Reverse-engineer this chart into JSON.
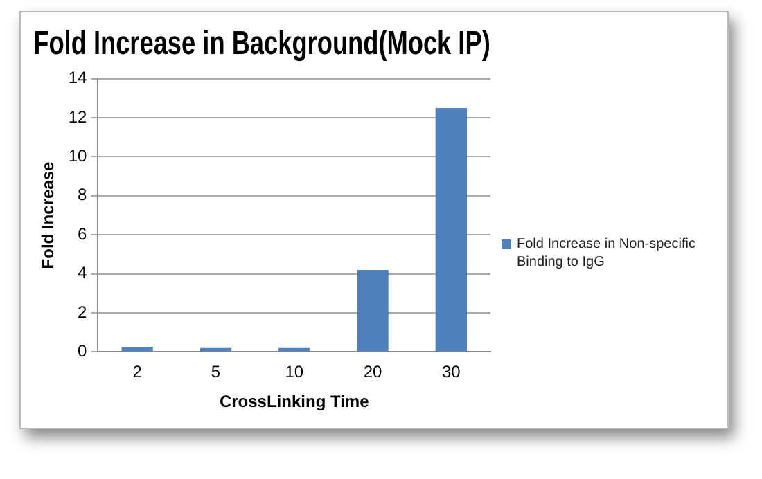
{
  "chart_data": {
    "type": "bar",
    "title": "Fold Increase in Background(Mock IP)",
    "xlabel": "CrossLinking Time",
    "ylabel": "Fold Increase",
    "categories": [
      "2",
      "5",
      "10",
      "20",
      "30"
    ],
    "series": [
      {
        "name": "Fold Increase in Non-specific Binding to IgG",
        "color": "#4f81bd",
        "values": [
          0.25,
          0.2,
          0.2,
          4.2,
          12.5
        ]
      }
    ],
    "ylim": [
      0,
      14
    ],
    "yticks": [
      0,
      2,
      4,
      6,
      8,
      10,
      12,
      14
    ],
    "grid": "y",
    "legend": "right"
  }
}
